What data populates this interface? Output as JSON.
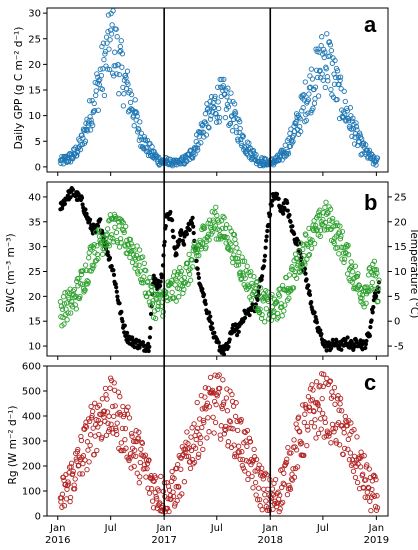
{
  "chart_data": [
    {
      "panel": "a",
      "type": "scatter",
      "ylabel": "Daily GPP (g C m⁻² d⁻¹)",
      "ylim": [
        -1,
        31
      ],
      "yticks": [
        0,
        5,
        10,
        15,
        20,
        25,
        30
      ],
      "xlim": [
        "2015-11-25",
        "2019-02-10"
      ],
      "colors": {
        "marker": "#1f77b4"
      },
      "series": [
        {
          "x": [
            "2016-01-10",
            "2016-02-01",
            "2016-02-20",
            "2016-03-10",
            "2016-03-25",
            "2016-04-10",
            "2016-04-25",
            "2016-05-10",
            "2016-05-25",
            "2016-06-10",
            "2016-06-25",
            "2016-07-05",
            "2016-07-20",
            "2016-08-01",
            "2016-08-15",
            "2016-09-01",
            "2016-09-15",
            "2016-10-01",
            "2016-10-15",
            "2016-11-01",
            "2016-11-15",
            "2016-12-01",
            "2016-12-20",
            "2017-01-10",
            "2017-02-01",
            "2017-03-01",
            "2017-03-20",
            "2017-04-10",
            "2017-04-25",
            "2017-05-10",
            "2017-05-25",
            "2017-06-10",
            "2017-06-25",
            "2017-07-10",
            "2017-07-25",
            "2017-08-10",
            "2017-08-25",
            "2017-09-10",
            "2017-09-25",
            "2017-10-10",
            "2017-10-25",
            "2017-11-10",
            "2017-11-25",
            "2017-12-10",
            "2017-12-25",
            "2018-01-10",
            "2018-02-01",
            "2018-02-20",
            "2018-03-10",
            "2018-03-25",
            "2018-04-10",
            "2018-04-25",
            "2018-05-10",
            "2018-05-25",
            "2018-06-10",
            "2018-06-25",
            "2018-07-10",
            "2018-07-25",
            "2018-08-10",
            "2018-08-25",
            "2018-09-10",
            "2018-09-25",
            "2018-10-10",
            "2018-10-25",
            "2018-11-10",
            "2018-11-25",
            "2018-12-10",
            "2018-12-25",
            "2019-01-05"
          ],
          "y": [
            1,
            1.5,
            2,
            3.5,
            5,
            8,
            11,
            14,
            17,
            20,
            23,
            25,
            22,
            20,
            17,
            14,
            12,
            8,
            6,
            4,
            3,
            2,
            1,
            1,
            0.5,
            1,
            1.5,
            3,
            5,
            7,
            9,
            10,
            12,
            13,
            13,
            12,
            10,
            8,
            6,
            4,
            3,
            2,
            1,
            1,
            0.5,
            1,
            1.5,
            3,
            5,
            7,
            9,
            12,
            14,
            16,
            18,
            20,
            22,
            20,
            17,
            14,
            12,
            10,
            8,
            6,
            4,
            3,
            2,
            1,
            1
          ]
        }
      ]
    },
    {
      "panel": "b",
      "type": "scatter",
      "ylabel": "SWC (m⁻³ m⁻³)",
      "ylabel_right": "Temperature (°C)",
      "ylim": [
        8,
        43
      ],
      "yticks": [
        10,
        15,
        20,
        25,
        30,
        35,
        40
      ],
      "ylim_right": [
        -7,
        28
      ],
      "yticks_right": [
        -5,
        0,
        5,
        10,
        15,
        20,
        25
      ],
      "xlim": [
        "2015-11-25",
        "2019-02-10"
      ],
      "colors": {
        "swc": "#000000",
        "temperature": "#2ca02c"
      },
      "series": [
        {
          "axis": "left",
          "x": [
            "2016-01-10",
            "2016-02-01",
            "2016-02-20",
            "2016-03-10",
            "2016-03-25",
            "2016-04-10",
            "2016-04-25",
            "2016-05-10",
            "2016-05-25",
            "2016-06-10",
            "2016-06-25",
            "2016-07-10",
            "2016-07-25",
            "2016-08-10",
            "2016-08-25",
            "2016-09-10",
            "2016-10-01",
            "2016-10-20",
            "2016-11-10",
            "2016-11-25",
            "2016-12-10",
            "2016-12-25",
            "2017-01-10",
            "2017-01-25",
            "2017-02-10",
            "2017-02-25",
            "2017-03-10",
            "2017-03-25",
            "2017-04-10",
            "2017-04-25",
            "2017-05-10",
            "2017-05-25",
            "2017-06-10",
            "2017-06-25",
            "2017-07-10",
            "2017-07-25",
            "2017-08-10",
            "2017-08-25",
            "2017-09-10",
            "2017-10-01",
            "2017-10-20",
            "2017-11-10",
            "2017-11-25",
            "2017-12-10",
            "2017-12-25",
            "2018-01-10",
            "2018-01-25",
            "2018-02-10",
            "2018-02-25",
            "2018-03-10",
            "2018-03-25",
            "2018-04-10",
            "2018-04-25",
            "2018-05-10",
            "2018-05-25",
            "2018-06-10",
            "2018-06-25",
            "2018-07-10",
            "2018-07-25",
            "2018-08-10",
            "2018-09-01",
            "2018-09-20",
            "2018-10-10",
            "2018-11-01",
            "2018-11-20",
            "2018-12-10",
            "2018-12-25",
            "2019-01-10"
          ],
          "y": [
            38,
            40,
            41,
            40,
            39,
            36,
            34,
            33,
            35,
            31,
            28,
            25,
            20,
            15,
            12,
            11,
            10.5,
            10,
            10,
            24,
            22,
            24,
            37,
            36,
            28,
            33,
            31,
            34,
            35,
            25,
            22,
            18,
            15,
            11,
            10,
            9,
            10,
            14,
            13,
            16,
            17,
            18,
            22,
            26,
            35,
            40,
            40,
            37,
            39,
            35,
            32,
            30,
            26,
            22,
            18,
            14,
            12,
            10,
            10,
            10.5,
            10,
            11,
            10,
            11,
            10,
            13,
            20,
            22
          ]
        },
        {
          "axis": "right",
          "x": [
            "2016-01-10",
            "2016-02-01",
            "2016-02-20",
            "2016-03-10",
            "2016-03-25",
            "2016-04-10",
            "2016-04-25",
            "2016-05-10",
            "2016-05-25",
            "2016-06-10",
            "2016-06-25",
            "2016-07-10",
            "2016-07-25",
            "2016-08-10",
            "2016-08-25",
            "2016-09-10",
            "2016-10-01",
            "2016-10-20",
            "2016-11-10",
            "2016-11-25",
            "2016-12-10",
            "2016-12-25",
            "2017-01-10",
            "2017-01-25",
            "2017-02-10",
            "2017-02-25",
            "2017-03-10",
            "2017-03-25",
            "2017-04-10",
            "2017-04-25",
            "2017-05-10",
            "2017-05-25",
            "2017-06-10",
            "2017-06-25",
            "2017-07-10",
            "2017-07-25",
            "2017-08-10",
            "2017-08-25",
            "2017-09-10",
            "2017-10-01",
            "2017-10-20",
            "2017-11-10",
            "2017-11-25",
            "2017-12-10",
            "2017-12-25",
            "2018-01-10",
            "2018-01-25",
            "2018-02-10",
            "2018-02-25",
            "2018-03-10",
            "2018-03-25",
            "2018-04-10",
            "2018-04-25",
            "2018-05-10",
            "2018-05-25",
            "2018-06-10",
            "2018-06-25",
            "2018-07-10",
            "2018-07-25",
            "2018-08-10",
            "2018-09-01",
            "2018-09-20",
            "2018-10-10",
            "2018-11-01",
            "2018-11-20",
            "2018-12-10",
            "2018-12-25",
            "2019-01-10"
          ],
          "y": [
            2,
            3,
            4,
            6,
            8,
            10,
            13,
            15,
            16,
            17,
            18,
            19,
            18,
            17,
            16,
            15,
            12,
            10,
            6,
            4,
            3,
            4,
            5,
            6,
            7,
            8,
            9,
            10,
            12,
            14,
            16,
            18,
            19,
            20,
            19,
            18,
            17,
            15,
            13,
            10,
            8,
            6,
            4,
            3,
            3,
            2,
            3,
            4,
            6,
            8,
            10,
            12,
            14,
            16,
            17,
            18,
            20,
            21,
            20,
            18,
            16,
            13,
            10,
            7,
            6,
            8,
            9,
            6
          ]
        }
      ]
    },
    {
      "panel": "c",
      "type": "scatter",
      "ylabel": "Rg (W m⁻² d⁻¹)",
      "ylim": [
        0,
        600
      ],
      "yticks": [
        0,
        100,
        200,
        300,
        400,
        500,
        600
      ],
      "xlim": [
        "2015-11-25",
        "2019-02-10"
      ],
      "xticks": [
        {
          "date": "2016-01-01",
          "label": "Jan\n2016"
        },
        {
          "date": "2016-07-01",
          "label": "Jul"
        },
        {
          "date": "2017-01-01",
          "label": "Jan\n2017"
        },
        {
          "date": "2017-07-01",
          "label": "Jul"
        },
        {
          "date": "2018-01-01",
          "label": "Jan\n2018"
        },
        {
          "date": "2018-07-01",
          "label": "Jul"
        },
        {
          "date": "2019-01-01",
          "label": "Jan\n2019"
        }
      ],
      "colors": {
        "marker": "#b22222"
      },
      "series": [
        {
          "x": [
            "2016-01-10",
            "2016-02-01",
            "2016-02-20",
            "2016-03-10",
            "2016-03-25",
            "2016-04-10",
            "2016-04-25",
            "2016-05-10",
            "2016-05-25",
            "2016-06-10",
            "2016-06-25",
            "2016-07-05",
            "2016-07-20",
            "2016-08-01",
            "2016-08-15",
            "2016-09-01",
            "2016-09-15",
            "2016-10-01",
            "2016-10-15",
            "2016-11-01",
            "2016-11-15",
            "2016-12-01",
            "2016-12-20",
            "2017-01-10",
            "2017-02-01",
            "2017-02-20",
            "2017-03-10",
            "2017-03-25",
            "2017-04-10",
            "2017-04-25",
            "2017-05-10",
            "2017-05-25",
            "2017-06-10",
            "2017-06-25",
            "2017-07-10",
            "2017-07-25",
            "2017-08-10",
            "2017-08-25",
            "2017-09-10",
            "2017-09-25",
            "2017-10-10",
            "2017-10-25",
            "2017-11-10",
            "2017-11-25",
            "2017-12-10",
            "2017-12-25",
            "2018-01-10",
            "2018-02-01",
            "2018-02-20",
            "2018-03-10",
            "2018-03-25",
            "2018-04-10",
            "2018-04-25",
            "2018-05-10",
            "2018-05-25",
            "2018-06-10",
            "2018-06-25",
            "2018-07-10",
            "2018-07-25",
            "2018-08-10",
            "2018-08-25",
            "2018-09-10",
            "2018-09-25",
            "2018-10-10",
            "2018-10-25",
            "2018-11-10",
            "2018-11-25",
            "2018-12-10",
            "2018-12-25",
            "2019-01-05"
          ],
          "y": [
            60,
            110,
            160,
            200,
            250,
            290,
            330,
            370,
            400,
            420,
            440,
            420,
            400,
            380,
            350,
            320,
            280,
            250,
            220,
            180,
            140,
            110,
            90,
            70,
            100,
            150,
            200,
            250,
            300,
            340,
            380,
            410,
            430,
            450,
            440,
            420,
            400,
            370,
            330,
            290,
            250,
            210,
            170,
            130,
            100,
            80,
            60,
            100,
            150,
            200,
            250,
            300,
            340,
            380,
            410,
            430,
            450,
            440,
            420,
            400,
            370,
            340,
            300,
            260,
            220,
            180,
            140,
            100,
            80,
            60
          ]
        }
      ]
    }
  ],
  "panels": [
    {
      "letter": "a",
      "ylabel": "Daily GPP (g C m⁻² d⁻¹)"
    },
    {
      "letter": "b",
      "ylabel": "SWC (m⁻³ m⁻³)",
      "ylabel_right": "Temperature (°C)"
    },
    {
      "letter": "c",
      "ylabel": "Rg (W m⁻² d⁻¹)"
    }
  ],
  "vertical_lines": [
    "2017-01-01",
    "2018-01-01"
  ]
}
